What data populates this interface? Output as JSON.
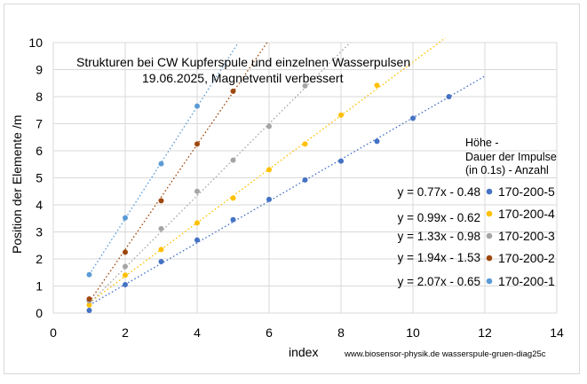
{
  "chart_data": {
    "type": "scatter",
    "title": [
      "Strukturen bei CW Kupferspule und einzelnen Wasserpulsen",
      "19.06.2025, Magnetventil verbessert"
    ],
    "xlabel": "index",
    "ylabel": "Position der Elemente /m",
    "xlim": [
      0,
      14
    ],
    "ylim": [
      0,
      10
    ],
    "xticks": [
      "0",
      "2",
      "4",
      "6",
      "8",
      "10",
      "12",
      "14"
    ],
    "yticks": [
      "0",
      "1",
      "2",
      "3",
      "4",
      "5",
      "6",
      "7",
      "8",
      "9",
      "10"
    ],
    "grid": true,
    "legend_title": [
      "Höhe -",
      "Dauer der Impulse",
      "(in 0.1s) -  Anzahl"
    ],
    "series": [
      {
        "name": "170-200-5",
        "color": "#4472c4",
        "x": [
          1,
          2,
          3,
          4,
          5,
          6,
          7,
          8,
          9,
          10,
          11
        ],
        "y": [
          0.1,
          1.05,
          1.9,
          2.7,
          3.45,
          4.2,
          4.92,
          5.62,
          6.35,
          7.2,
          8.0
        ],
        "trendline": {
          "slope": 0.77,
          "intercept": -0.48,
          "x_range": [
            1,
            12
          ],
          "label": "y = 0.77x - 0.48"
        }
      },
      {
        "name": "170-200-4",
        "color": "#ffc000",
        "x": [
          1,
          2,
          3,
          4,
          5,
          6,
          7,
          8,
          9
        ],
        "y": [
          0.3,
          1.4,
          2.35,
          3.33,
          4.25,
          5.3,
          6.25,
          7.32,
          8.42
        ],
        "trendline": {
          "slope": 0.99,
          "intercept": -0.62,
          "x_range": [
            1,
            10.9
          ],
          "label": "y = 0.99x - 0.62"
        }
      },
      {
        "name": "170-200-3",
        "color": "#a5a5a5",
        "x": [
          1,
          2,
          3,
          4,
          5,
          6,
          7
        ],
        "y": [
          0.45,
          1.72,
          3.12,
          4.5,
          5.65,
          6.9,
          8.4
        ],
        "trendline": {
          "slope": 1.33,
          "intercept": -0.98,
          "x_range": [
            1,
            8.26
          ],
          "label": "y = 1.33x - 0.98"
        }
      },
      {
        "name": "170-200-2",
        "color": "#9e480e",
        "x": [
          1,
          2,
          3,
          4,
          5
        ],
        "y": [
          0.52,
          2.25,
          4.15,
          6.25,
          8.2
        ],
        "trendline": {
          "slope": 1.94,
          "intercept": -1.53,
          "x_range": [
            1,
            5.95
          ],
          "label": "y = 1.94x - 1.53"
        }
      },
      {
        "name": "170-200-1",
        "color": "#5b9bd5",
        "x": [
          1,
          2,
          3,
          4
        ],
        "y": [
          1.42,
          3.52,
          5.52,
          7.65
        ],
        "trendline": {
          "slope": 2.07,
          "intercept": -0.65,
          "x_range": [
            1,
            5.14
          ],
          "label": "y = 2.07x - 0.65"
        }
      }
    ],
    "footer": "www.biosensor-physik.de  wasserspule-gruen-diag25c"
  }
}
